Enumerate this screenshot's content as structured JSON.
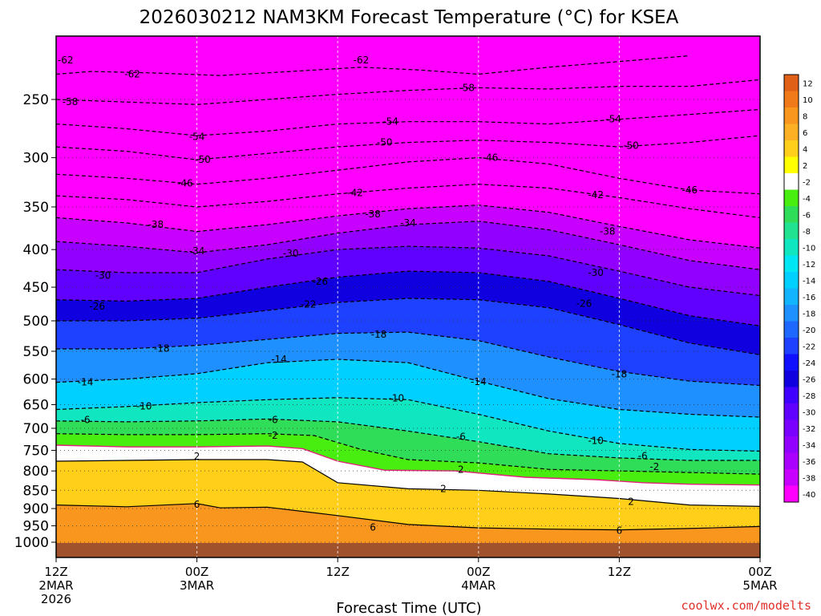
{
  "chart_data": {
    "type": "heatmap",
    "title": "2026030212 NAM3KM Forecast Temperature (°C) for KSEA",
    "xlabel": "Forecast Time (UTC)",
    "ylabel": "",
    "credit": "coolwx.com/modelts",
    "x_range_hours": [
      0,
      60
    ],
    "y_range_hpa": [
      1000,
      200
    ],
    "y_ticks": [
      250,
      300,
      350,
      400,
      450,
      500,
      550,
      600,
      650,
      700,
      750,
      800,
      850,
      900,
      950,
      1000
    ],
    "x_ticks": [
      {
        "hour": 0,
        "lines": [
          "12Z",
          "2MAR",
          "2026"
        ]
      },
      {
        "hour": 12,
        "lines": [
          "00Z",
          "3MAR"
        ]
      },
      {
        "hour": 24,
        "lines": [
          "12Z"
        ]
      },
      {
        "hour": 36,
        "lines": [
          "00Z",
          "4MAR"
        ]
      },
      {
        "hour": 48,
        "lines": [
          "12Z"
        ]
      },
      {
        "hour": 60,
        "lines": [
          "00Z",
          "5MAR"
        ]
      }
    ],
    "colorbar": {
      "labels": [
        "12",
        "10",
        "8",
        "6",
        "4",
        "2",
        "-2",
        "-4",
        "-6",
        "-8",
        "-10",
        "-12",
        "-14",
        "-16",
        "-18",
        "-20",
        "-22",
        "-24",
        "-26",
        "-28",
        "-30",
        "-32",
        "-34",
        "-36",
        "-38",
        "-40"
      ],
      "colors": [
        "#e06018",
        "#f07a1a",
        "#f8961e",
        "#fdb023",
        "#ffcf1a",
        "#ffff00",
        "#ffffff",
        "#48ee10",
        "#30dd58",
        "#20e290",
        "#10e6c0",
        "#00e6f2",
        "#00d0ff",
        "#12b4ff",
        "#1e90ff",
        "#1e68ff",
        "#1e40ff",
        "#1010ff",
        "#1000e0",
        "#4000ff",
        "#6000ff",
        "#7a00ff",
        "#9200ff",
        "#aa00ff",
        "#c800ff",
        "#ff00ff"
      ]
    },
    "isotherms": [
      {
        "temp": -62,
        "label": "-62",
        "label_points": [
          [
            0.8,
            221
          ],
          [
            6.5,
            231
          ],
          [
            26.0,
            221
          ]
        ],
        "points": [
          [
            0,
            231
          ],
          [
            3,
            229
          ],
          [
            8,
            230
          ],
          [
            14,
            232
          ],
          [
            20,
            229
          ],
          [
            26,
            226
          ],
          [
            31,
            228
          ],
          [
            36,
            231
          ],
          [
            42,
            226
          ],
          [
            48,
            222
          ],
          [
            54,
            218
          ]
        ]
      },
      {
        "temp": -58,
        "label": "-58",
        "label_points": [
          [
            1.2,
            252
          ],
          [
            35.0,
            241
          ]
        ],
        "points": [
          [
            0,
            250
          ],
          [
            6,
            252
          ],
          [
            12,
            254
          ],
          [
            18,
            250
          ],
          [
            24,
            246
          ],
          [
            30,
            243
          ],
          [
            36,
            241
          ],
          [
            42,
            242
          ],
          [
            48,
            240
          ],
          [
            54,
            240
          ],
          [
            60,
            235
          ]
        ]
      },
      {
        "temp": -54,
        "label": "-54",
        "label_points": [
          [
            12.0,
            281
          ],
          [
            28.5,
            268
          ],
          [
            47.5,
            266
          ]
        ],
        "points": [
          [
            0,
            270
          ],
          [
            6,
            274
          ],
          [
            12,
            280
          ],
          [
            18,
            276
          ],
          [
            24,
            270
          ],
          [
            30,
            268
          ],
          [
            36,
            268
          ],
          [
            42,
            270
          ],
          [
            48,
            266
          ],
          [
            54,
            262
          ],
          [
            60,
            258
          ]
        ]
      },
      {
        "temp": -50,
        "label": "-50",
        "label_points": [
          [
            12.5,
            302
          ],
          [
            28.0,
            286
          ],
          [
            49.0,
            289
          ]
        ],
        "points": [
          [
            0,
            290
          ],
          [
            6,
            294
          ],
          [
            12,
            302
          ],
          [
            18,
            296
          ],
          [
            24,
            290
          ],
          [
            30,
            286
          ],
          [
            36,
            284
          ],
          [
            42,
            286
          ],
          [
            48,
            290
          ],
          [
            54,
            286
          ],
          [
            60,
            280
          ]
        ]
      },
      {
        "temp": -46,
        "label": "-46",
        "label_points": [
          [
            11.0,
            325
          ],
          [
            37.0,
            300
          ],
          [
            54.0,
            332
          ]
        ],
        "points": [
          [
            0,
            316
          ],
          [
            6,
            320
          ],
          [
            12,
            326
          ],
          [
            18,
            320
          ],
          [
            24,
            312
          ],
          [
            30,
            304
          ],
          [
            36,
            300
          ],
          [
            42,
            306
          ],
          [
            48,
            320
          ],
          [
            54,
            332
          ],
          [
            60,
            336
          ]
        ]
      },
      {
        "temp": -42,
        "label": "-42",
        "label_points": [
          [
            25.5,
            335
          ],
          [
            46.0,
            337
          ]
        ],
        "points": [
          [
            0,
            338
          ],
          [
            6,
            342
          ],
          [
            12,
            350
          ],
          [
            18,
            344
          ],
          [
            24,
            336
          ],
          [
            30,
            330
          ],
          [
            36,
            326
          ],
          [
            42,
            330
          ],
          [
            48,
            340
          ],
          [
            54,
            352
          ],
          [
            60,
            362
          ]
        ]
      },
      {
        "temp": -38,
        "label": "-38",
        "label_points": [
          [
            8.5,
            370
          ],
          [
            27.0,
            358
          ],
          [
            47.0,
            378
          ]
        ],
        "points": [
          [
            0,
            362
          ],
          [
            6,
            368
          ],
          [
            12,
            378
          ],
          [
            18,
            370
          ],
          [
            24,
            360
          ],
          [
            30,
            352
          ],
          [
            36,
            348
          ],
          [
            42,
            356
          ],
          [
            48,
            372
          ],
          [
            54,
            388
          ],
          [
            60,
            398
          ]
        ]
      },
      {
        "temp": -34,
        "label": "-34",
        "label_points": [
          [
            12.0,
            402
          ],
          [
            30.0,
            368
          ]
        ],
        "points": [
          [
            0,
            390
          ],
          [
            6,
            396
          ],
          [
            12,
            404
          ],
          [
            18,
            394
          ],
          [
            24,
            380
          ],
          [
            30,
            370
          ],
          [
            36,
            366
          ],
          [
            42,
            376
          ],
          [
            48,
            394
          ],
          [
            54,
            414
          ],
          [
            60,
            426
          ]
        ]
      },
      {
        "temp": -30,
        "label": "-30",
        "label_points": [
          [
            4.0,
            434
          ],
          [
            20.0,
            405
          ],
          [
            46.0,
            430
          ]
        ],
        "points": [
          [
            0,
            426
          ],
          [
            6,
            430
          ],
          [
            12,
            430
          ],
          [
            18,
            412
          ],
          [
            24,
            400
          ],
          [
            30,
            396
          ],
          [
            36,
            398
          ],
          [
            42,
            408
          ],
          [
            48,
            428
          ],
          [
            54,
            450
          ],
          [
            60,
            462
          ]
        ]
      },
      {
        "temp": -26,
        "label": "-26",
        "label_points": [
          [
            3.5,
            478
          ],
          [
            22.5,
            442
          ],
          [
            45.0,
            474
          ]
        ],
        "points": [
          [
            0,
            468
          ],
          [
            6,
            470
          ],
          [
            12,
            466
          ],
          [
            18,
            450
          ],
          [
            24,
            436
          ],
          [
            30,
            428
          ],
          [
            36,
            430
          ],
          [
            42,
            442
          ],
          [
            48,
            466
          ],
          [
            54,
            492
          ],
          [
            60,
            508
          ]
        ]
      },
      {
        "temp": -22,
        "label": "-22",
        "label_points": [
          [
            21.5,
            475
          ]
        ],
        "points": [
          [
            0,
            500
          ],
          [
            6,
            500
          ],
          [
            12,
            496
          ],
          [
            18,
            484
          ],
          [
            24,
            472
          ],
          [
            30,
            466
          ],
          [
            36,
            468
          ],
          [
            42,
            480
          ],
          [
            48,
            506
          ],
          [
            54,
            536
          ],
          [
            60,
            556
          ]
        ]
      },
      {
        "temp": -18,
        "label": "-18",
        "label_points": [
          [
            9.0,
            545
          ],
          [
            27.5,
            522
          ],
          [
            48.0,
            591
          ]
        ],
        "points": [
          [
            0,
            546
          ],
          [
            6,
            546
          ],
          [
            12,
            540
          ],
          [
            18,
            530
          ],
          [
            24,
            520
          ],
          [
            30,
            518
          ],
          [
            36,
            532
          ],
          [
            42,
            560
          ],
          [
            48,
            586
          ],
          [
            54,
            604
          ],
          [
            60,
            612
          ]
        ]
      },
      {
        "temp": -14,
        "label": "-14",
        "label_points": [
          [
            2.5,
            606
          ],
          [
            19.0,
            564
          ],
          [
            36.0,
            605
          ]
        ],
        "points": [
          [
            0,
            606
          ],
          [
            6,
            600
          ],
          [
            12,
            590
          ],
          [
            18,
            570
          ],
          [
            24,
            564
          ],
          [
            30,
            570
          ],
          [
            36,
            604
          ],
          [
            42,
            638
          ],
          [
            48,
            660
          ],
          [
            54,
            670
          ],
          [
            60,
            676
          ]
        ]
      },
      {
        "temp": -10,
        "label": "-10",
        "label_points": [
          [
            7.5,
            653
          ],
          [
            29.0,
            637
          ],
          [
            46.0,
            728
          ]
        ],
        "points": [
          [
            0,
            660
          ],
          [
            6,
            654
          ],
          [
            12,
            646
          ],
          [
            18,
            640
          ],
          [
            24,
            636
          ],
          [
            30,
            640
          ],
          [
            36,
            670
          ],
          [
            42,
            706
          ],
          [
            48,
            734
          ],
          [
            54,
            748
          ],
          [
            60,
            752
          ]
        ]
      },
      {
        "temp": -6,
        "label": "-6",
        "label_points": [
          [
            2.5,
            682
          ],
          [
            18.5,
            682
          ],
          [
            34.5,
            719
          ],
          [
            50.0,
            763
          ]
        ],
        "points": [
          [
            0,
            684
          ],
          [
            6,
            686
          ],
          [
            12,
            684
          ],
          [
            18,
            680
          ],
          [
            24,
            686
          ],
          [
            30,
            706
          ],
          [
            36,
            730
          ],
          [
            42,
            758
          ],
          [
            48,
            768
          ],
          [
            54,
            774
          ],
          [
            60,
            774
          ]
        ]
      },
      {
        "temp": -2,
        "label": "-2",
        "label_points": [
          [
            18.5,
            716
          ],
          [
            51.0,
            790
          ]
        ],
        "points": [
          [
            0,
            712
          ],
          [
            6,
            714
          ],
          [
            12,
            714
          ],
          [
            18,
            712
          ],
          [
            22,
            716
          ],
          [
            26,
            748
          ],
          [
            30,
            772
          ],
          [
            36,
            780
          ],
          [
            42,
            796
          ],
          [
            48,
            800
          ],
          [
            54,
            804
          ],
          [
            60,
            808
          ]
        ]
      },
      {
        "temp": 0,
        "label": "",
        "label_points": [],
        "points": [
          [
            0,
            738
          ],
          [
            6,
            742
          ],
          [
            12,
            742
          ],
          [
            18,
            740
          ],
          [
            21,
            746
          ],
          [
            24,
            776
          ],
          [
            28,
            798
          ],
          [
            34,
            800
          ],
          [
            40,
            816
          ],
          [
            46,
            822
          ],
          [
            50,
            830
          ],
          [
            54,
            834
          ],
          [
            60,
            836
          ]
        ]
      },
      {
        "temp": 2,
        "label": "2",
        "label_points": [
          [
            12.0,
            764
          ],
          [
            34.5,
            797
          ],
          [
            33.0,
            846
          ],
          [
            49.0,
            881
          ]
        ],
        "points": [
          [
            0,
            776
          ],
          [
            6,
            774
          ],
          [
            12,
            772
          ],
          [
            18,
            772
          ],
          [
            21,
            778
          ],
          [
            24,
            830
          ],
          [
            30,
            846
          ],
          [
            36,
            850
          ],
          [
            42,
            860
          ],
          [
            48,
            872
          ],
          [
            54,
            890
          ],
          [
            60,
            894
          ]
        ]
      },
      {
        "temp": 6,
        "label": "6",
        "label_points": [
          [
            12.0,
            889
          ],
          [
            27.0,
            955
          ],
          [
            48.0,
            964
          ]
        ],
        "points": [
          [
            0,
            890
          ],
          [
            6,
            895
          ],
          [
            12,
            886
          ],
          [
            14,
            898
          ],
          [
            18,
            896
          ],
          [
            24,
            920
          ],
          [
            30,
            946
          ],
          [
            36,
            956
          ],
          [
            42,
            960
          ],
          [
            48,
            962
          ],
          [
            54,
            958
          ],
          [
            60,
            952
          ]
        ]
      }
    ]
  }
}
